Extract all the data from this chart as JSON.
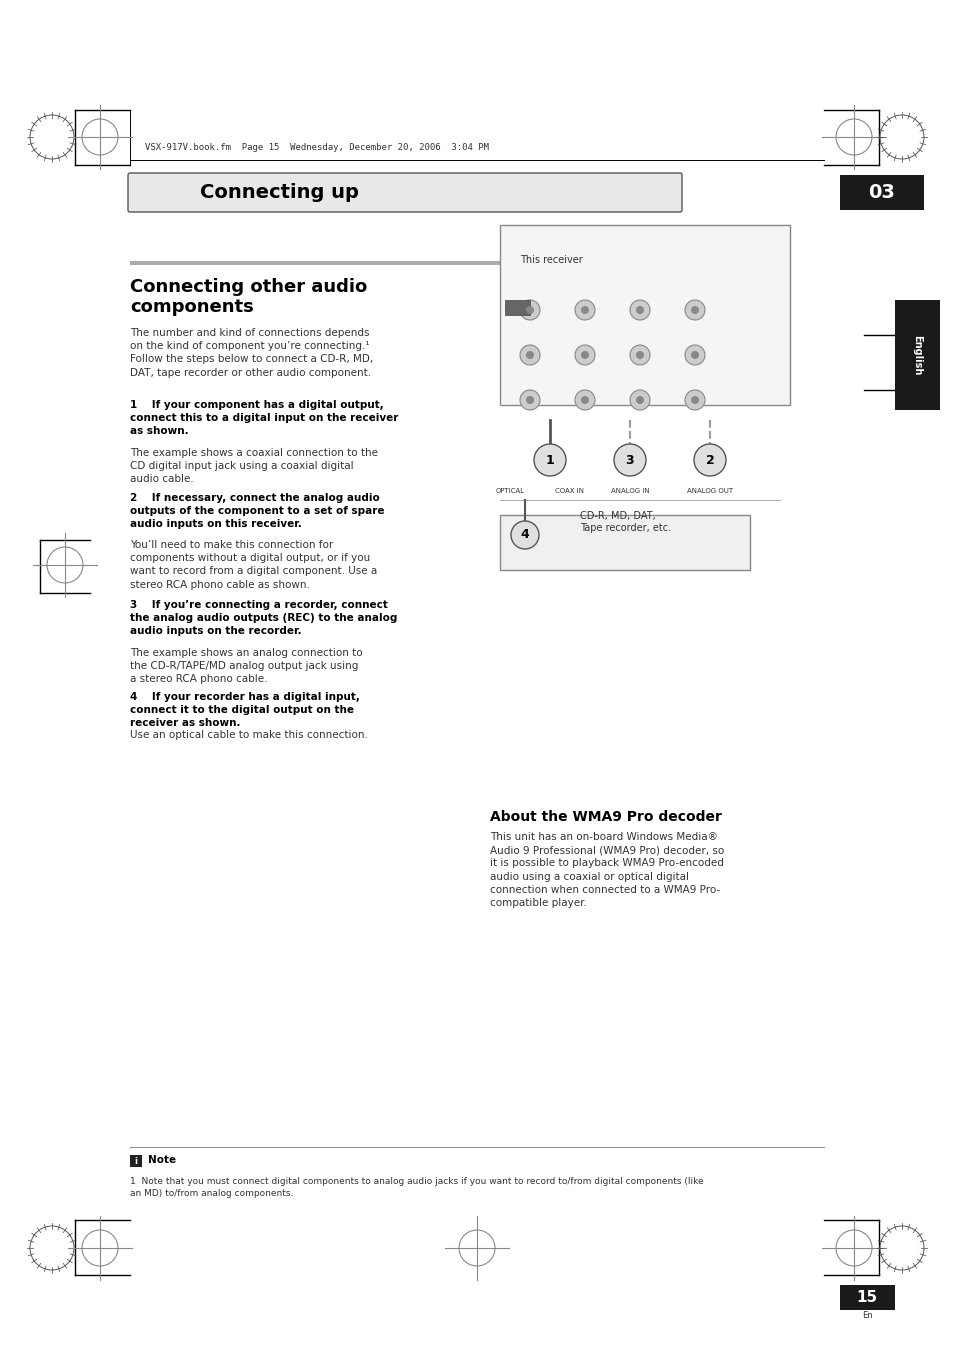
{
  "page_bg": "#ffffff",
  "header_text": "VSX-917V.book.fm  Page 15  Wednesday, December 20, 2006  3:04 PM",
  "section_tab_text": "Connecting up",
  "section_number": "03",
  "section_tab_bg": "#f0f0f0",
  "section_num_bg": "#1a1a1a",
  "title": "Connecting other audio\ncomponents",
  "intro_text": "The number and kind of connections depends\non the kind of component you’re connecting.¹\nFollow the steps below to connect a CD-R, MD,\nDAT, tape recorder or other audio component.",
  "step1_bold": "1 If your component has a digital output,\nconnect this to a digital input on the receiver\nas shown.",
  "step1_text": "The example shows a coaxial connection to the\nCD digital input jack using a coaxial digital\naudio cable.",
  "step2_bold": "2 If necessary, connect the analog audio\noutputs of the component to a set of spare\naudio inputs on this receiver.",
  "step2_text": "You’ll need to make this connection for\ncomponents without a digital output, or if you\nwant to record from a digital component. Use a\nstereo RCA phono cable as shown.",
  "step3_bold": "3 If you’re connecting a recorder, connect\nthe analog audio outputs (REC) to the analog\naudio inputs on the recorder.",
  "step3_text": "The example shows an analog connection to\nthe CD-R/TAPE/MD analog output jack using\na stereo RCA phono cable.",
  "step4_bold": "4 If your recorder has a digital input,\nconnect it to the digital output on the\nreceiver as shown.",
  "step4_text": "Use an optical cable to make this connection.",
  "wma_title": "About the WMA9 Pro decoder",
  "wma_text": "This unit has an on-board Windows Media®\nAudio 9 Professional (WMA9 Pro) decoder, so\nit is possible to playback WMA9 Pro-encoded\naudio using a coaxial or optical digital\nconnection when connected to a WMA9 Pro-\ncompatible player.",
  "diagram_label_top": "This receiver",
  "diagram_label_bottom": "CD-R, MD, DAT,\nTape recorder, etc.",
  "note_title": "Note",
  "note_text": "1  Note that you must connect digital components to analog audio jacks if you want to record to/from digital components (like\nan MD) to/from analog components.",
  "page_number": "15",
  "page_num_bg": "#1a1a1a",
  "english_tab_text": "English",
  "english_tab_bg": "#1a1a1a"
}
